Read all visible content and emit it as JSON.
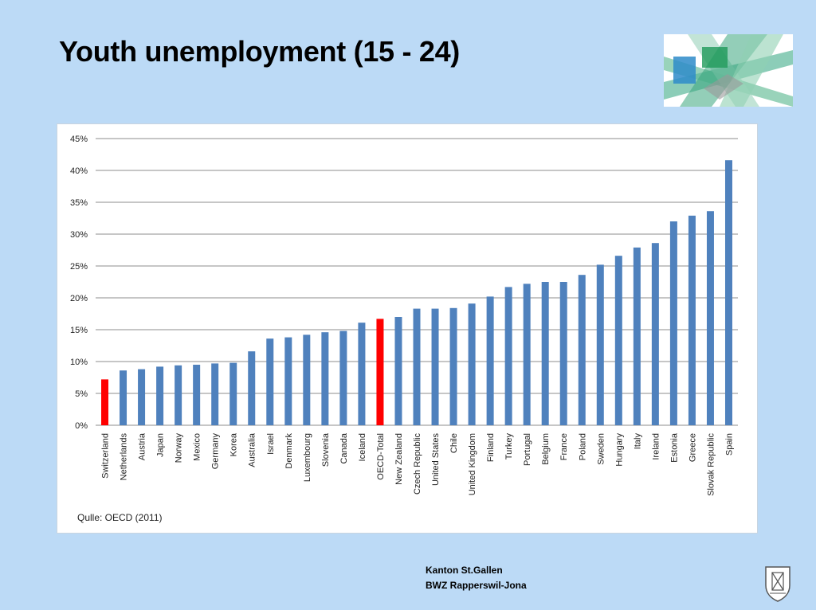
{
  "slide": {
    "title": "Youth unemployment (15 - 24)",
    "source": "Qulle: OECD (2011)",
    "footer_line1": "Kanton St.Gallen",
    "footer_line2": "BWZ Rapperswil-Jona"
  },
  "colors": {
    "background": "#bcdaf6",
    "bar_default": "#4f81bd",
    "bar_highlight": "#ff0000",
    "gridline": "#8c8c8c"
  },
  "chart_data": {
    "type": "bar",
    "title": "",
    "xlabel": "",
    "ylabel": "",
    "ylim": [
      0,
      45
    ],
    "y_ticks": [
      "0%",
      "5%",
      "10%",
      "15%",
      "20%",
      "25%",
      "30%",
      "35%",
      "40%",
      "45%"
    ],
    "y_unit": "%",
    "grid": true,
    "legend": "none",
    "categories": [
      "Switzerland",
      "Netherlands",
      "Austria",
      "Japan",
      "Norway",
      "Mexico",
      "Germany",
      "Korea",
      "Australia",
      "Israel",
      "Denmark",
      "Luxembourg",
      "Slovenia",
      "Canada",
      "Iceland",
      "OECD-Total",
      "New Zealand",
      "Czech Republic",
      "United States",
      "Chile",
      "United Kingdom",
      "Finland",
      "Turkey",
      "Portugal",
      "Belgium",
      "France",
      "Poland",
      "Sweden",
      "Hungary",
      "Italy",
      "Ireland",
      "Estonia",
      "Greece",
      "Slovak Republic",
      "Spain"
    ],
    "values": [
      7.2,
      8.6,
      8.8,
      9.2,
      9.4,
      9.5,
      9.7,
      9.8,
      11.6,
      13.6,
      13.8,
      14.2,
      14.6,
      14.8,
      16.1,
      16.7,
      17.0,
      18.3,
      18.3,
      18.4,
      19.1,
      20.2,
      21.7,
      22.2,
      22.5,
      22.5,
      23.6,
      25.2,
      26.6,
      27.9,
      28.6,
      32.0,
      32.9,
      33.6,
      41.6
    ],
    "highlighted": [
      "Switzerland",
      "OECD-Total"
    ]
  }
}
